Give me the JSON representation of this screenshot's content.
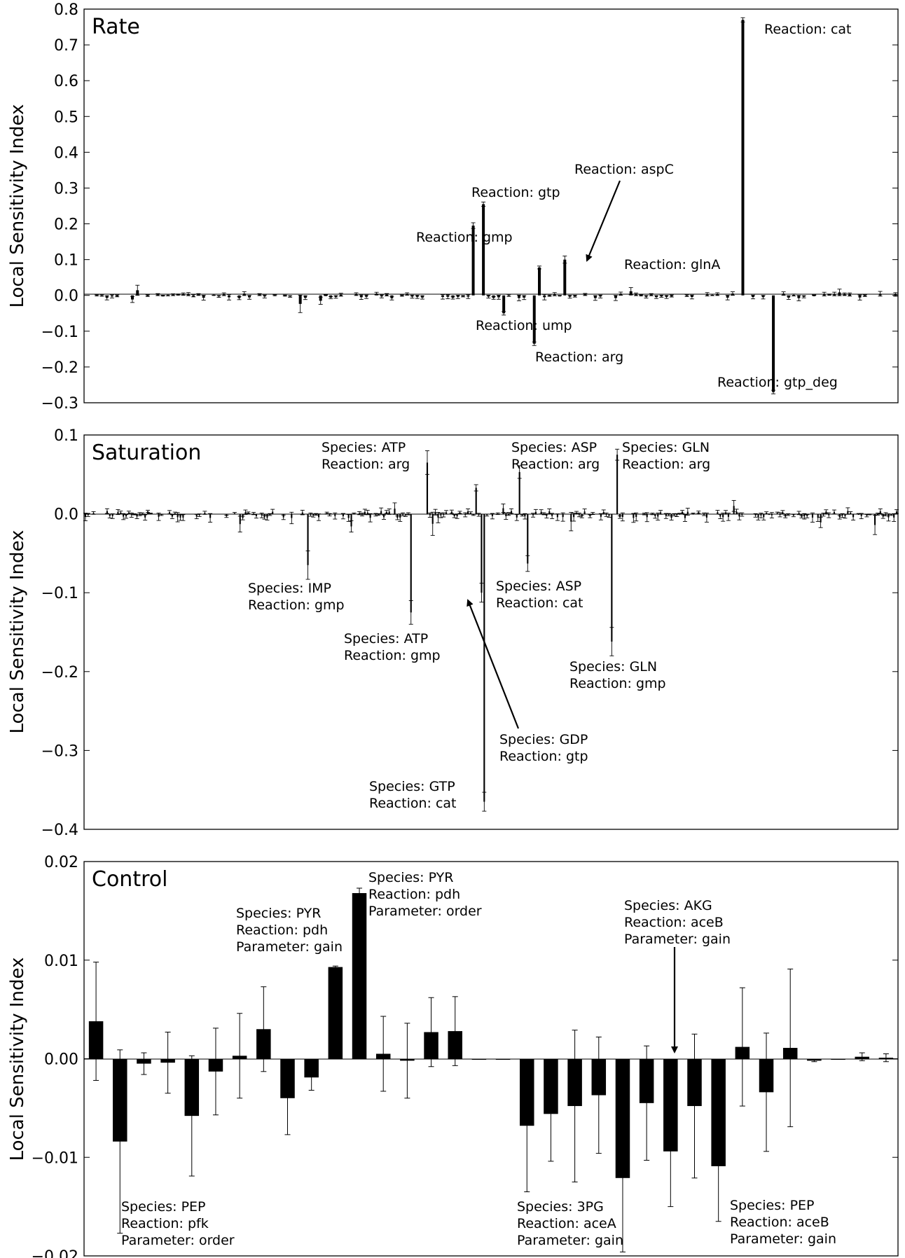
{
  "figure": {
    "panels": [
      {
        "id": "rate",
        "title": "Rate",
        "ylabel": "Local Sensitivity Index"
      },
      {
        "id": "saturation",
        "title": "Saturation",
        "ylabel": "Local Sensitivity Index"
      },
      {
        "id": "control",
        "title": "Control",
        "ylabel": "Local Sensitivity Index"
      }
    ]
  },
  "chart_data": [
    {
      "type": "bar",
      "title": "Rate",
      "ylabel": "Local Sensitivity Index",
      "ylim": [
        -0.3,
        0.8
      ],
      "yticks": [
        "0.8",
        "0.7",
        "0.6",
        "0.5",
        "0.4",
        "0.3",
        "0.2",
        "0.1",
        "0.0",
        "−0.1",
        "−0.2",
        "−0.3"
      ],
      "ytick_values": [
        0.8,
        0.7,
        0.6,
        0.5,
        0.4,
        0.3,
        0.2,
        0.1,
        0.0,
        -0.1,
        -0.2,
        -0.3
      ],
      "n_bars": 160,
      "bars": [
        {
          "index": 76,
          "value": 0.195,
          "err": 0.008
        },
        {
          "index": 78,
          "value": 0.255,
          "err": 0.006
        },
        {
          "index": 82,
          "value": -0.05,
          "err": 0.005
        },
        {
          "index": 88,
          "value": -0.135,
          "err": 0.005
        },
        {
          "index": 89,
          "value": 0.078,
          "err": 0.004
        },
        {
          "index": 94,
          "value": 0.1,
          "err": 0.01
        },
        {
          "index": 129,
          "value": 0.77,
          "err": 0.006
        },
        {
          "index": 135,
          "value": -0.27,
          "err": 0.005
        }
      ],
      "annotations": [
        {
          "text": "Reaction: cat",
          "bar": 129
        },
        {
          "text": "Reaction: aspC",
          "bar": 89
        },
        {
          "text": "Reaction: gtp",
          "bar": 78
        },
        {
          "text": "Reaction: gmp",
          "bar": 76
        },
        {
          "text": "Reaction: glnA",
          "bar": 94
        },
        {
          "text": "Reaction: ump",
          "bar": 82
        },
        {
          "text": "Reaction: arg",
          "bar": 88
        },
        {
          "text": "Reaction: gtp_deg",
          "bar": 135
        }
      ]
    },
    {
      "type": "bar",
      "title": "Saturation",
      "ylabel": "Local Sensitivity Index",
      "ylim": [
        -0.4,
        0.1
      ],
      "yticks": [
        "0.1",
        "0.0",
        "−0.1",
        "−0.2",
        "−0.3",
        "−0.4"
      ],
      "ytick_values": [
        0.1,
        0.0,
        -0.1,
        -0.2,
        -0.3,
        -0.4
      ],
      "n_bars": 300,
      "bars": [
        {
          "index": 82,
          "value": -0.065,
          "err": 0.018
        },
        {
          "index": 120,
          "value": -0.125,
          "err": 0.015
        },
        {
          "index": 126,
          "value": 0.065,
          "err": 0.015
        },
        {
          "index": 144,
          "value": 0.033,
          "err": 0.004
        },
        {
          "index": 146,
          "value": -0.1,
          "err": 0.012
        },
        {
          "index": 147,
          "value": -0.365,
          "err": 0.012
        },
        {
          "index": 160,
          "value": 0.053,
          "err": 0.008
        },
        {
          "index": 163,
          "value": -0.063,
          "err": 0.01
        },
        {
          "index": 194,
          "value": -0.162,
          "err": 0.018
        },
        {
          "index": 196,
          "value": 0.075,
          "err": 0.007
        }
      ],
      "annotations": [
        {
          "text": [
            "Species: ATP",
            "Reaction: arg"
          ],
          "bar": 126
        },
        {
          "text": [
            "Species: ASP",
            "Reaction: arg"
          ],
          "bar": 160
        },
        {
          "text": [
            "Species: GLN",
            "Reaction: arg"
          ],
          "bar": 196
        },
        {
          "text": [
            "Species: IMP",
            "Reaction: gmp"
          ],
          "bar": 82
        },
        {
          "text": [
            "Species: ATP",
            "Reaction: gmp"
          ],
          "bar": 120
        },
        {
          "text": [
            "Species: ASP",
            "Reaction: cat"
          ],
          "bar": 163
        },
        {
          "text": [
            "Species: GLN",
            "Reaction: gmp"
          ],
          "bar": 194
        },
        {
          "text": [
            "Species: GDP",
            "Reaction: gtp"
          ],
          "bar": 146
        },
        {
          "text": [
            "Species: GTP",
            "Reaction: cat"
          ],
          "bar": 147
        }
      ]
    },
    {
      "type": "bar",
      "title": "Control",
      "ylabel": "Local Sensitivity Index",
      "ylim": [
        -0.02,
        0.02
      ],
      "yticks": [
        "0.02",
        "0.01",
        "0.00",
        "−0.01",
        "−0.02"
      ],
      "ytick_values": [
        0.02,
        0.01,
        0.0,
        -0.01,
        -0.02
      ],
      "values": [
        0.0038,
        -0.0084,
        -0.0005,
        -0.0004,
        -0.0058,
        -0.0013,
        0.0003,
        0.003,
        -0.004,
        -0.0019,
        0.0093,
        0.0168,
        0.0005,
        -0.0002,
        0.0027,
        0.0028,
        -0.0001,
        -0.0001,
        -0.0068,
        -0.0056,
        -0.0048,
        -0.0037,
        -0.0121,
        -0.0045,
        -0.0094,
        -0.0048,
        -0.0109,
        0.0012,
        -0.0034,
        0.0011,
        -0.0002,
        0.0,
        0.0002,
        0.0001
      ],
      "errors": [
        0.006,
        0.0093,
        0.0011,
        0.0031,
        0.0061,
        0.0044,
        0.0043,
        0.0043,
        0.0037,
        0.0013,
        0.0001,
        0.0005,
        0.0038,
        0.0038,
        0.0035,
        0.0035,
        0.0,
        0.0,
        0.0067,
        0.0048,
        0.0077,
        0.0059,
        0.0075,
        0.0058,
        0.0056,
        0.0073,
        0.0056,
        0.006,
        0.006,
        0.008,
        0.0001,
        0.0,
        0.0004,
        0.0004
      ],
      "annotations": [
        {
          "text": [
            "Species: PYR",
            "Reaction: pdh",
            "Parameter: order"
          ],
          "bar": 11
        },
        {
          "text": [
            "Species: PYR",
            "Reaction: pdh",
            "Parameter: gain"
          ],
          "bar": 10
        },
        {
          "text": [
            "Species: AKG",
            "Reaction: aceB",
            "Parameter: gain"
          ],
          "bar": 24
        },
        {
          "text": [
            "Species: PEP",
            "Reaction: pfk",
            "Parameter: order"
          ],
          "bar": 1
        },
        {
          "text": [
            "Species: 3PG",
            "Reaction: aceA",
            "Parameter: gain"
          ],
          "bar": 22
        },
        {
          "text": [
            "Species: PEP",
            "Reaction: aceB",
            "Parameter: gain"
          ],
          "bar": 26
        }
      ]
    }
  ]
}
